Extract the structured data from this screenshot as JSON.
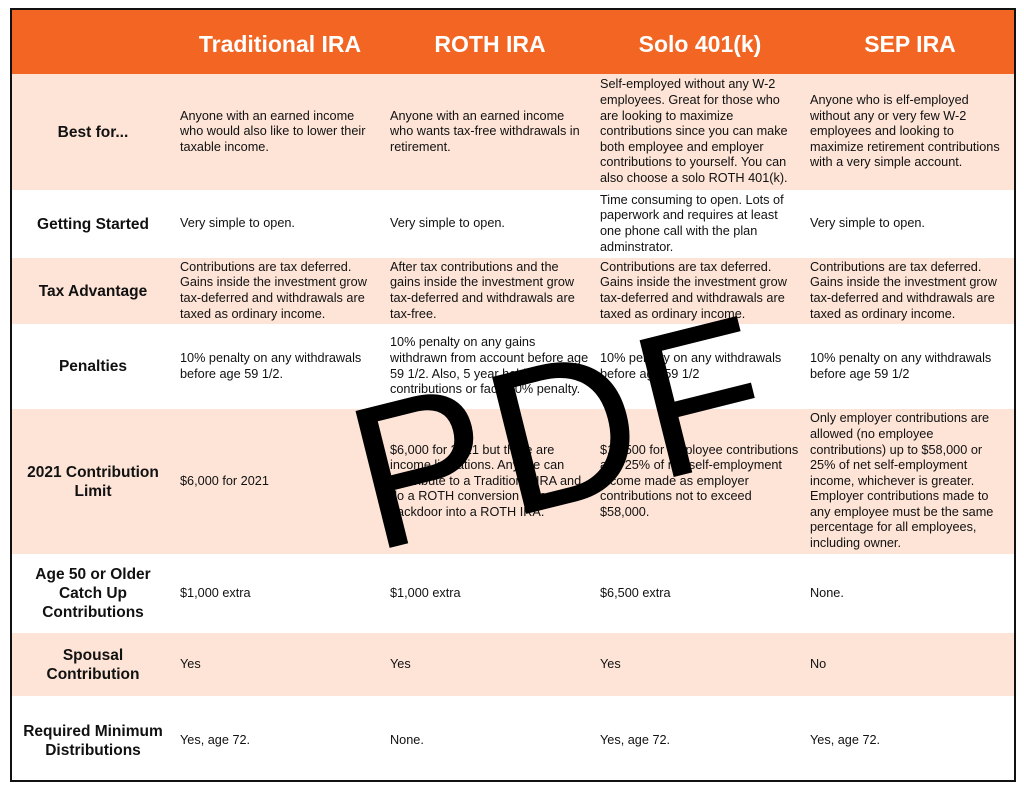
{
  "table": {
    "columns": [
      "Traditional IRA",
      "ROTH IRA",
      "Solo 401(k)",
      "SEP IRA"
    ],
    "rows": [
      {
        "label": "Best for...",
        "cells": [
          "Anyone with an earned income who would also like to lower their taxable income.",
          "Anyone with an earned income who wants tax-free withdrawals in retirement.",
          "Self-employed without any W-2 employees. Great for those who are looking to maximize contributions since you can make both employee and employer contributions to yourself. You can also choose a solo ROTH 401(k).",
          "Anyone who is elf-employed without any or very few W-2 employees and looking to maximize retirement contributions with a very simple account."
        ]
      },
      {
        "label": "Getting Started",
        "cells": [
          "Very simple to open.",
          "Very simple to open.",
          "Time consuming to open. Lots of paperwork and requires at least one phone call with the plan adminstrator.",
          "Very simple to open."
        ]
      },
      {
        "label": "Tax Advantage",
        "cells": [
          "Contributions are tax deferred. Gains inside the investment grow tax-deferred and withdrawals are taxed as ordinary income.",
          "After tax contributions and the gains inside the investment grow tax-deferred and withdrawals are tax-free.",
          "Contributions are tax deferred. Gains inside the investment grow tax-deferred and withdrawals are taxed as ordinary income.",
          "Contributions are tax deferred. Gains inside the investment grow tax-deferred and withdrawals are taxed as ordinary income."
        ]
      },
      {
        "label": "Penalties",
        "cells": [
          "10% penalty on any withdrawals before age 59 1/2.",
          "10% penalty on any gains withdrawn from account before age 59 1/2. Also, 5 year hold on contributions or face 10% penalty.",
          "10% penalty on any withdrawals before age 59 1/2",
          "10% penalty on any withdrawals before age 59 1/2"
        ]
      },
      {
        "label": "2021 Contribution Limit",
        "cells": [
          "$6,000 for 2021",
          "$6,000 for 2021 but there are income limitations. Anyone can contribute to a Traditional IRA and do a ROTH conversion as a backdoor into a ROTH IRA.",
          "$19,500 for employee contributions and 25% of net self-employment income made as employer contributions not to exceed $58,000.",
          "Only employer contributions are allowed (no employee contributions) up to $58,000 or 25% of net self-employment income, whichever is greater. Employer contributions made to any employee must be the same percentage for all employees, including owner."
        ]
      },
      {
        "label": "Age 50 or Older Catch Up Contributions",
        "cells": [
          "$1,000 extra",
          "$1,000 extra",
          "$6,500 extra",
          "None."
        ]
      },
      {
        "label": "Spousal Contribution",
        "cells": [
          "Yes",
          "Yes",
          "Yes",
          "No"
        ]
      },
      {
        "label": "Required Minimum Distributions",
        "cells": [
          "Yes, age 72.",
          "None.",
          "Yes, age 72.",
          "Yes, age 72."
        ]
      }
    ]
  },
  "watermark": "PDF"
}
